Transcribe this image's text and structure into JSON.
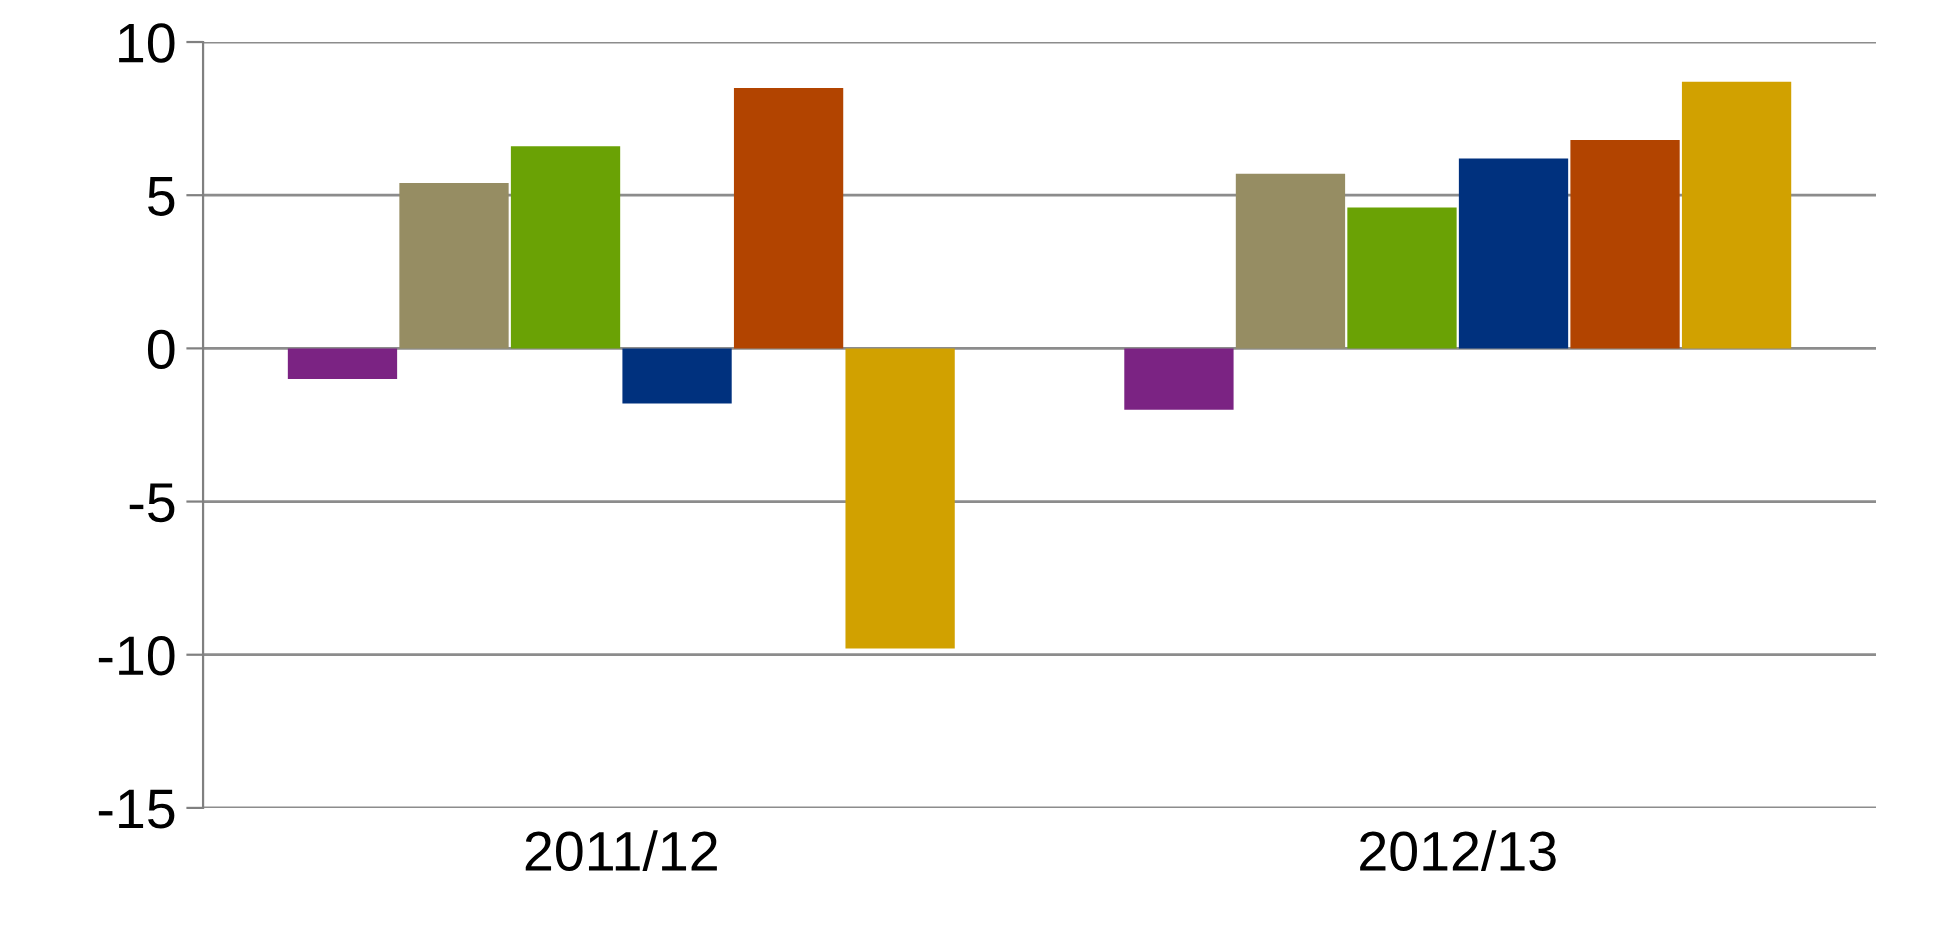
{
  "chart_data": {
    "type": "bar",
    "categories": [
      "2011/12",
      "2012/13"
    ],
    "series": [
      {
        "color": "#7b2383",
        "values": [
          -1.0,
          -2.0
        ]
      },
      {
        "color": "#968d63",
        "values": [
          5.4,
          5.7
        ]
      },
      {
        "color": "#6aa205",
        "values": [
          6.6,
          4.6
        ]
      },
      {
        "color": "#00317e",
        "values": [
          -1.8,
          6.2
        ]
      },
      {
        "color": "#b24400",
        "values": [
          8.5,
          6.8
        ]
      },
      {
        "color": "#d1a100",
        "values": [
          -9.8,
          8.7
        ]
      }
    ],
    "ylim": [
      -15,
      10
    ],
    "yticks": [
      -15,
      -10,
      -5,
      0,
      5,
      10
    ],
    "grid": "y"
  }
}
